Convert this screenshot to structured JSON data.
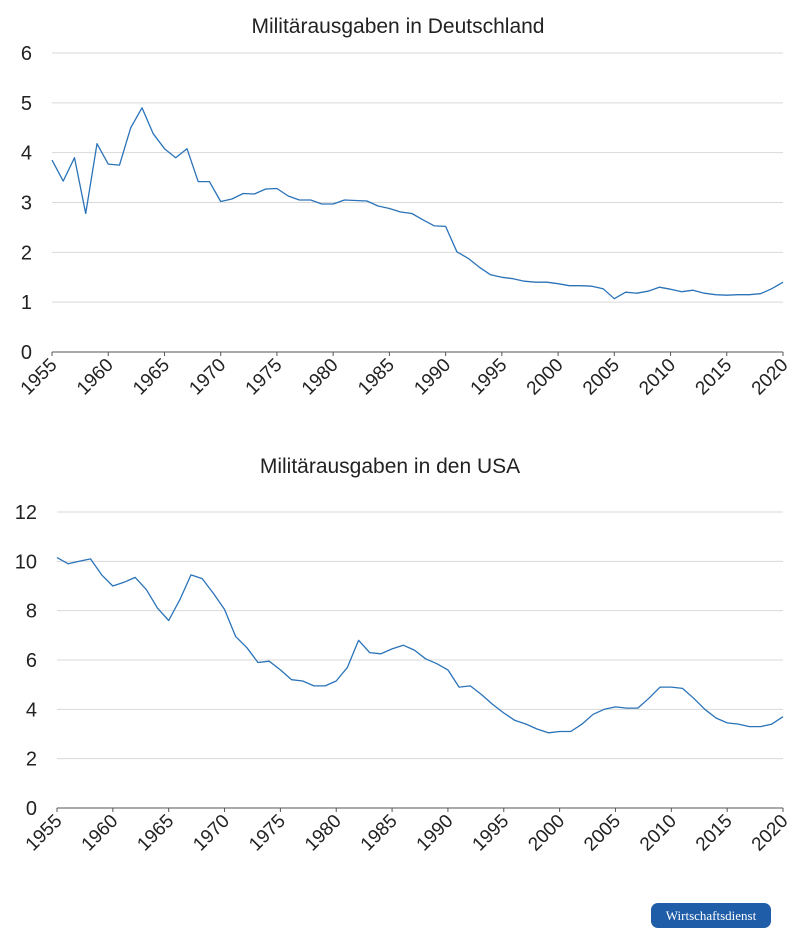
{
  "chart_data": [
    {
      "type": "line",
      "title": "Militärausgaben in Deutschland",
      "xlabel": "",
      "ylabel": "",
      "xlim": [
        1955,
        2020
      ],
      "ylim": [
        0,
        6
      ],
      "yticks": [
        0,
        1,
        2,
        3,
        4,
        5,
        6
      ],
      "yticklabels": [
        "0",
        "1",
        "2",
        "3",
        "4",
        "5",
        "6"
      ],
      "xticks": [
        1955,
        1960,
        1965,
        1970,
        1975,
        1980,
        1985,
        1990,
        1995,
        2000,
        2005,
        2010,
        2015,
        2020
      ],
      "xticklabels": [
        "1955",
        "1960",
        "1965",
        "1970",
        "1975",
        "1980",
        "1985",
        "1990",
        "1995",
        "2000",
        "2005",
        "2010",
        "2015",
        "2020"
      ],
      "grid": true,
      "line_color": "#2a73b8",
      "series": [
        {
          "x": [
            1955,
            1956,
            1957,
            1958,
            1959,
            1960,
            1961,
            1962,
            1963,
            1964,
            1965,
            1966,
            1967,
            1968,
            1969,
            1970,
            1971,
            1972,
            1973,
            1974,
            1975,
            1976,
            1977,
            1978,
            1979,
            1980,
            1981,
            1982,
            1983,
            1984,
            1985,
            1986,
            1987,
            1988,
            1989,
            1990,
            1991,
            1992,
            1993,
            1994,
            1995,
            1996,
            1997,
            1998,
            1999,
            2000,
            2001,
            2002,
            2003,
            2004,
            2005,
            2006,
            2007,
            2008,
            2009,
            2010,
            2011,
            2012,
            2013,
            2014,
            2015,
            2016,
            2017,
            2018,
            2019,
            2020
          ],
          "y": [
            3.85,
            3.43,
            3.9,
            2.78,
            4.18,
            3.77,
            3.75,
            4.5,
            4.9,
            4.38,
            4.08,
            3.9,
            4.08,
            3.42,
            3.42,
            3.02,
            3.07,
            3.18,
            3.17,
            3.27,
            3.28,
            3.13,
            3.05,
            3.05,
            2.97,
            2.97,
            3.05,
            3.04,
            3.03,
            2.93,
            2.88,
            2.81,
            2.78,
            2.65,
            2.53,
            2.52,
            2.01,
            1.88,
            1.7,
            1.55,
            1.5,
            1.47,
            1.42,
            1.4,
            1.4,
            1.37,
            1.33,
            1.33,
            1.32,
            1.27,
            1.07,
            1.2,
            1.18,
            1.22,
            1.3,
            1.26,
            1.21,
            1.24,
            1.18,
            1.15,
            1.14,
            1.15,
            1.15,
            1.17,
            1.27,
            1.4
          ]
        }
      ]
    },
    {
      "type": "line",
      "title": "Militärausgaben in den USA",
      "xlabel": "",
      "ylabel": "",
      "xlim": [
        1955,
        2020
      ],
      "ylim": [
        0,
        12
      ],
      "yticks": [
        0,
        2,
        4,
        6,
        8,
        10,
        12
      ],
      "yticklabels": [
        "0",
        "2",
        "4",
        "6",
        "8",
        "10",
        "12"
      ],
      "xticks": [
        1955,
        1960,
        1965,
        1970,
        1975,
        1980,
        1985,
        1990,
        1995,
        2000,
        2005,
        2010,
        2015,
        2020
      ],
      "xticklabels": [
        "1955",
        "1960",
        "1965",
        "1970",
        "1975",
        "1980",
        "1985",
        "1990",
        "1995",
        "2000",
        "2005",
        "2010",
        "2015",
        "2020"
      ],
      "grid": true,
      "line_color": "#2a73b8",
      "series": [
        {
          "x": [
            1955,
            1956,
            1957,
            1958,
            1959,
            1960,
            1961,
            1962,
            1963,
            1964,
            1965,
            1966,
            1967,
            1968,
            1969,
            1970,
            1971,
            1972,
            1973,
            1974,
            1975,
            1976,
            1977,
            1978,
            1979,
            1980,
            1981,
            1982,
            1983,
            1984,
            1985,
            1986,
            1987,
            1988,
            1989,
            1990,
            1991,
            1992,
            1993,
            1994,
            1995,
            1996,
            1997,
            1998,
            1999,
            2000,
            2001,
            2002,
            2003,
            2004,
            2005,
            2006,
            2007,
            2008,
            2009,
            2010,
            2011,
            2012,
            2013,
            2014,
            2015,
            2016,
            2017,
            2018,
            2019,
            2020
          ],
          "y": [
            10.15,
            9.9,
            10.0,
            10.1,
            9.45,
            9.0,
            9.15,
            9.35,
            8.85,
            8.1,
            7.6,
            8.45,
            9.45,
            9.3,
            8.7,
            8.05,
            6.95,
            6.5,
            5.9,
            5.95,
            5.6,
            5.2,
            5.15,
            4.95,
            4.95,
            5.15,
            5.7,
            6.8,
            6.3,
            6.25,
            6.45,
            6.6,
            6.4,
            6.05,
            5.85,
            5.6,
            4.9,
            4.95,
            4.6,
            4.2,
            3.85,
            3.55,
            3.4,
            3.2,
            3.05,
            3.1,
            3.1,
            3.4,
            3.8,
            4.0,
            4.1,
            4.05,
            4.05,
            4.45,
            4.9,
            4.9,
            4.85,
            4.45,
            4.0,
            3.65,
            3.45,
            3.4,
            3.3,
            3.3,
            3.4,
            3.7
          ]
        }
      ]
    }
  ],
  "badge": {
    "label": "Wirtschaftsdienst",
    "color": "#1f5da8"
  }
}
